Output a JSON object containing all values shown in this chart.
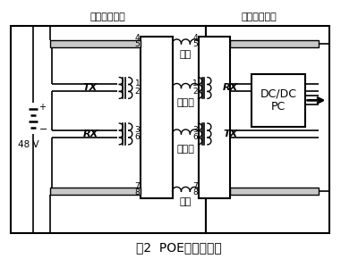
{
  "title": "图2  POE供电原理图",
  "label_pse": "电源提供设备",
  "label_pae": "电源应用设备",
  "label_48v": "48 V",
  "label_tx1": "TX",
  "label_rx1": "RX",
  "label_rx2": "RX",
  "label_tx2": "TX",
  "label_dcdc": "DC/DC\nPC",
  "label_kongjiao": "空脚",
  "label_xinhao": "信号脚",
  "bg_color": "#ffffff",
  "figsize": [
    4.0,
    2.9
  ],
  "dpi": 100
}
